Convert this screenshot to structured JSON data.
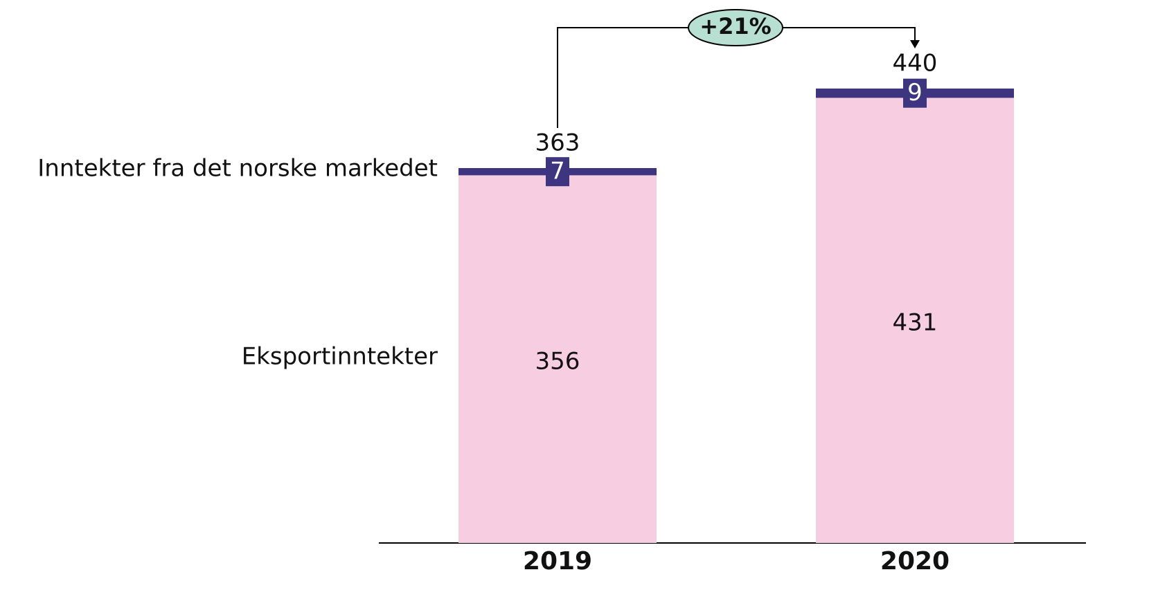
{
  "chart_data": {
    "type": "stacked-bar",
    "categories": [
      "2019",
      "2020"
    ],
    "series": [
      {
        "name": "Eksportinntekter",
        "color": "#f7cde2",
        "values": [
          356,
          431
        ]
      },
      {
        "name": "Inntekter fra det norske markedet",
        "color": "#3d3580",
        "values": [
          7,
          9
        ]
      }
    ],
    "totals": [
      363,
      440
    ],
    "annotation": "+21%",
    "annotation_color": "#b8e0d2"
  }
}
